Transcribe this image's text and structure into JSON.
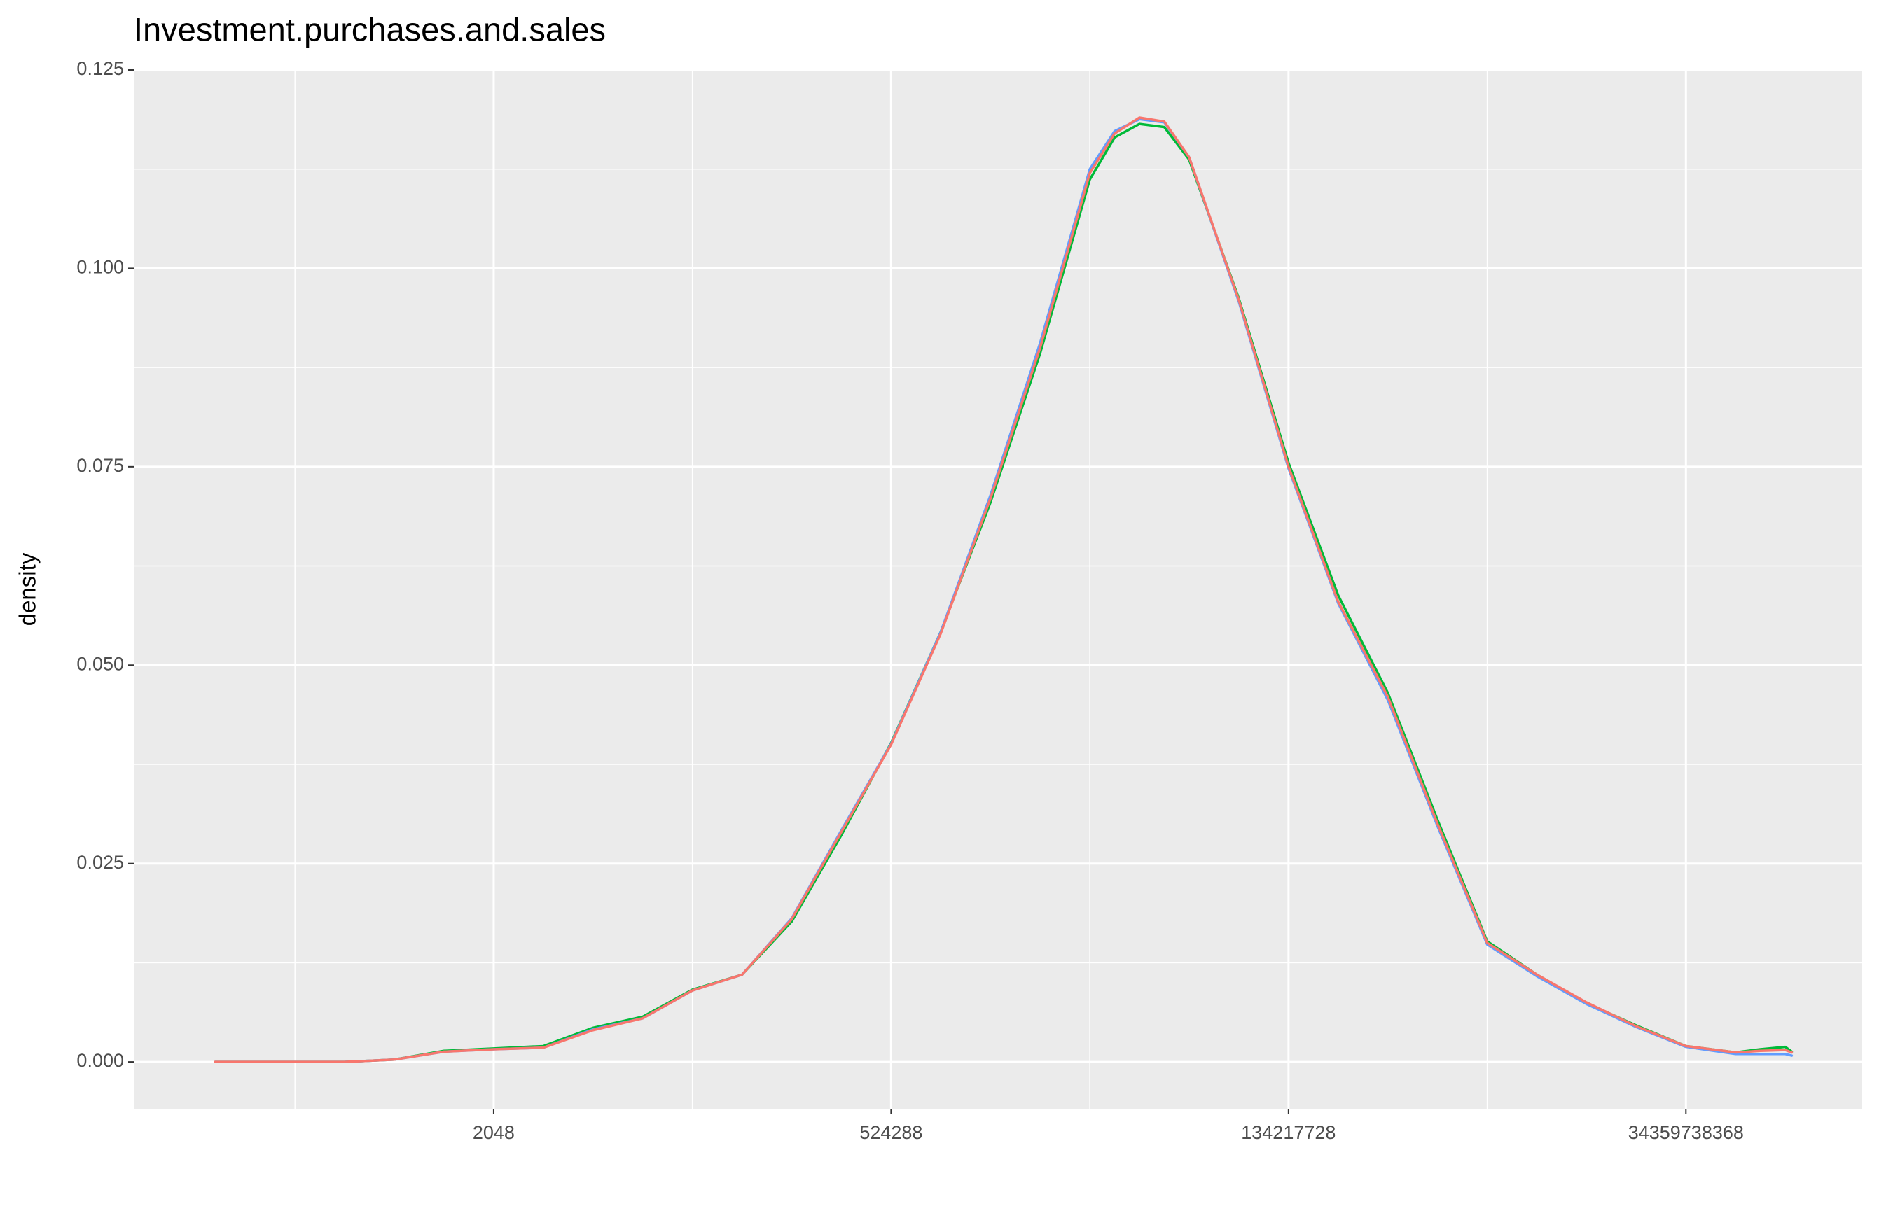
{
  "chart_data": {
    "type": "line",
    "title": "Investment.purchases.and.sales",
    "y_label": "density",
    "x_scale": "log2",
    "grid": true,
    "xlim": [
      13.5,
      402000000000
    ],
    "ylim": [
      -0.0059,
      0.125
    ],
    "xticks": [
      2048,
      524288,
      134217728,
      34359738368
    ],
    "xminor": [
      128,
      32768,
      8388608,
      2147483648
    ],
    "yticks": [
      {
        "value": 0,
        "label": "0.000"
      },
      {
        "value": 0.025,
        "label": "0.025"
      },
      {
        "value": 0.05,
        "label": "0.050"
      },
      {
        "value": 0.075,
        "label": "0.075"
      },
      {
        "value": 0.1,
        "label": "0.100"
      },
      {
        "value": 0.125,
        "label": "0.125"
      }
    ],
    "yminor": [
      0.0125,
      0.0375,
      0.0625,
      0.0875,
      0.1125
    ],
    "x": [
      42,
      64,
      128,
      256,
      512,
      1024,
      2048,
      4096,
      8192,
      16384,
      32768,
      65536,
      131072,
      262144,
      524288,
      1048576,
      2097152,
      4194304,
      8388608,
      11863283,
      16777216,
      23726566,
      33554432,
      67108864,
      134217728,
      268435456,
      536870912,
      1073741824,
      2147483648,
      4294967296,
      8589934592,
      17179869184,
      34359738368,
      68719476736,
      97184015999,
      137438953472,
      150400000000
    ],
    "series": [
      {
        "color": "#00BA38",
        "values": [
          0.0,
          0.0,
          0.0,
          0.0,
          0.0003,
          0.0014,
          0.0017,
          0.002,
          0.0043,
          0.0057,
          0.0091,
          0.011,
          0.0177,
          0.0286,
          0.0402,
          0.0542,
          0.0705,
          0.0893,
          0.1112,
          0.1165,
          0.1182,
          0.1178,
          0.1137,
          0.0962,
          0.0755,
          0.0588,
          0.0465,
          0.0305,
          0.0152,
          0.011,
          0.0074,
          0.0046,
          0.002,
          0.0012,
          0.0016,
          0.0019,
          0.0013
        ]
      },
      {
        "color": "#619CFF",
        "values": [
          0.0,
          0.0,
          0.0,
          0.0,
          0.0003,
          0.0013,
          0.0016,
          0.0018,
          0.0041,
          0.0055,
          0.009,
          0.011,
          0.0181,
          0.0292,
          0.0401,
          0.0542,
          0.0714,
          0.0906,
          0.1125,
          0.1173,
          0.1188,
          0.1184,
          0.114,
          0.0958,
          0.0748,
          0.0578,
          0.0456,
          0.0297,
          0.0148,
          0.0108,
          0.0073,
          0.0044,
          0.0019,
          0.001,
          0.001,
          0.001,
          0.0008
        ]
      },
      {
        "color": "#F8766D",
        "values": [
          0.0,
          0.0,
          0.0,
          0.0,
          0.0003,
          0.0013,
          0.0016,
          0.0018,
          0.004,
          0.0055,
          0.009,
          0.011,
          0.018,
          0.029,
          0.04,
          0.054,
          0.071,
          0.09,
          0.112,
          0.117,
          0.119,
          0.1185,
          0.114,
          0.096,
          0.075,
          0.058,
          0.046,
          0.03,
          0.015,
          0.011,
          0.0075,
          0.0045,
          0.002,
          0.0012,
          0.0014,
          0.0015,
          0.0012
        ]
      }
    ]
  }
}
